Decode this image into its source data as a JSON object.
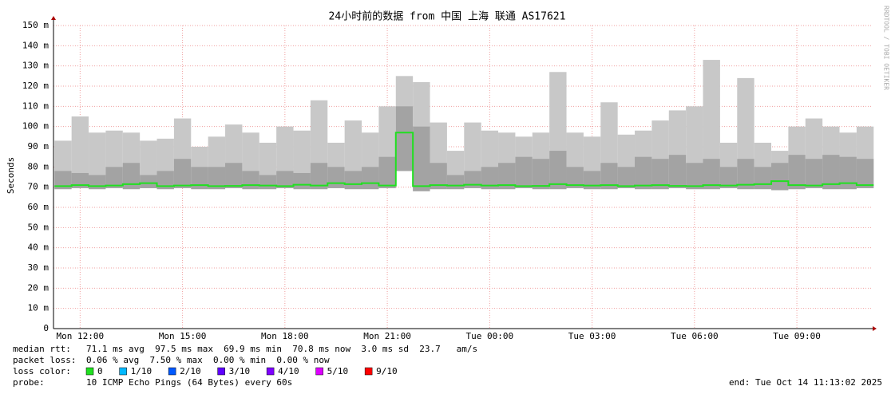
{
  "chart_data": {
    "type": "smokeping",
    "title": "24小时前的数据 from 中国 上海 联通 AS17621",
    "y_label": "Seconds",
    "watermark": "RRDTOOL / TOBI OETIKER",
    "xlim": [
      11.22,
      35.22
    ],
    "xticks": [
      {
        "value": 12,
        "label": "Mon 12:00"
      },
      {
        "value": 15,
        "label": "Mon 15:00"
      },
      {
        "value": 18,
        "label": "Mon 18:00"
      },
      {
        "value": 21,
        "label": "Mon 21:00"
      },
      {
        "value": 24,
        "label": "Tue 00:00"
      },
      {
        "value": 27,
        "label": "Tue 03:00"
      },
      {
        "value": 30,
        "label": "Tue 06:00"
      },
      {
        "value": 33,
        "label": "Tue 09:00"
      }
    ],
    "ylim": [
      0,
      150
    ],
    "yticks": [
      0,
      {
        "value": 10,
        "label": "10 m"
      },
      {
        "value": 20,
        "label": "20 m"
      },
      {
        "value": 30,
        "label": "30 m"
      },
      {
        "value": 40,
        "label": "40 m"
      },
      {
        "value": 50,
        "label": "50 m"
      },
      {
        "value": 60,
        "label": "60 m"
      },
      {
        "value": 70,
        "label": "70 m"
      },
      {
        "value": 80,
        "label": "80 m"
      },
      {
        "value": 90,
        "label": "90 m"
      },
      {
        "value": 100,
        "label": "100 m"
      },
      {
        "value": 110,
        "label": "110 m"
      },
      {
        "value": 120,
        "label": "120 m"
      },
      {
        "value": 130,
        "label": "130 m"
      },
      {
        "value": 140,
        "label": "140 m"
      },
      {
        "value": 150,
        "label": "150 m"
      }
    ],
    "grid": true,
    "x": [
      11.5,
      12,
      12.5,
      13,
      13.5,
      14,
      14.5,
      15,
      15.5,
      16,
      16.5,
      17,
      17.5,
      18,
      18.5,
      19,
      19.5,
      20,
      20.5,
      21,
      21.5,
      22,
      22.5,
      23,
      23.5,
      24,
      24.5,
      25,
      25.5,
      26,
      26.5,
      27,
      27.5,
      28,
      28.5,
      29,
      29.5,
      30,
      30.5,
      31,
      31.5,
      32,
      32.5,
      33,
      33.5,
      34,
      34.5,
      35
    ],
    "median": [
      70.5,
      71,
      70.5,
      70.8,
      71.5,
      72,
      70.5,
      70.8,
      71,
      70.5,
      70.6,
      71,
      70.8,
      70.5,
      71.2,
      70.8,
      72,
      71.5,
      72,
      70.8,
      97,
      70.5,
      71,
      70.8,
      71.2,
      70.8,
      71,
      70.5,
      70.6,
      71.5,
      71,
      70.8,
      71,
      70.5,
      70.8,
      71,
      70.6,
      70.5,
      71,
      70.8,
      71.2,
      71.5,
      73,
      71,
      70.8,
      71.5,
      72,
      71
    ],
    "smoke_min": [
      69,
      69.5,
      69,
      69.5,
      69,
      69.5,
      69,
      69.5,
      69,
      69,
      69.5,
      69,
      69,
      69.5,
      69,
      69,
      69.5,
      69,
      69,
      69.5,
      78,
      68,
      69,
      69,
      69.5,
      69,
      69,
      69.5,
      69,
      69,
      69.5,
      69,
      69,
      69.5,
      69,
      69,
      69.5,
      69,
      69,
      69.5,
      69,
      69,
      68.5,
      69,
      69.5,
      69,
      69,
      69.5
    ],
    "smoke_mid": [
      78,
      77,
      76,
      80,
      82,
      76,
      78,
      84,
      80,
      80,
      82,
      78,
      76,
      78,
      77,
      82,
      80,
      78,
      80,
      85,
      110,
      100,
      82,
      76,
      78,
      80,
      82,
      85,
      84,
      88,
      80,
      78,
      82,
      80,
      85,
      84,
      86,
      82,
      84,
      80,
      84,
      80,
      82,
      86,
      84,
      86,
      85,
      84
    ],
    "smoke_max": [
      93,
      105,
      97,
      98,
      97,
      93,
      94,
      104,
      90,
      95,
      101,
      97,
      92,
      100,
      98,
      113,
      92,
      103,
      97,
      110,
      125,
      122,
      102,
      88,
      102,
      98,
      97,
      95,
      97,
      127,
      97,
      95,
      112,
      96,
      98,
      103,
      108,
      110,
      133,
      92,
      124,
      92,
      88,
      100,
      104,
      100,
      97,
      100
    ],
    "median_color": "#20e020",
    "smoke_color": "#c8c8c8",
    "smoke_mid_color": "#8a8a8a",
    "stats": [
      {
        "label": "median rtt:",
        "text": "71.1 ms avg  97.5 ms max  69.9 ms min  70.8 ms now  3.0 ms sd  23.7   am/s"
      },
      {
        "label": "packet loss:",
        "text": "0.06 % avg  7.50 % max  0.00 % min  0.00 % now"
      }
    ],
    "loss_label": "loss color:",
    "loss_colors": [
      {
        "label": "0",
        "color": "#20e020"
      },
      {
        "label": "1/10",
        "color": "#00b8ff"
      },
      {
        "label": "2/10",
        "color": "#0059ff"
      },
      {
        "label": "3/10",
        "color": "#5e00ff"
      },
      {
        "label": "4/10",
        "color": "#7e00ff"
      },
      {
        "label": "5/10",
        "color": "#dd00ff"
      },
      {
        "label": "9/10",
        "color": "#ff0000"
      }
    ],
    "probe_label": "probe:",
    "probe": "10 ICMP Echo Pings (64 Bytes) every 60s",
    "end": "end: Tue Oct 14 11:13:02 2025"
  }
}
